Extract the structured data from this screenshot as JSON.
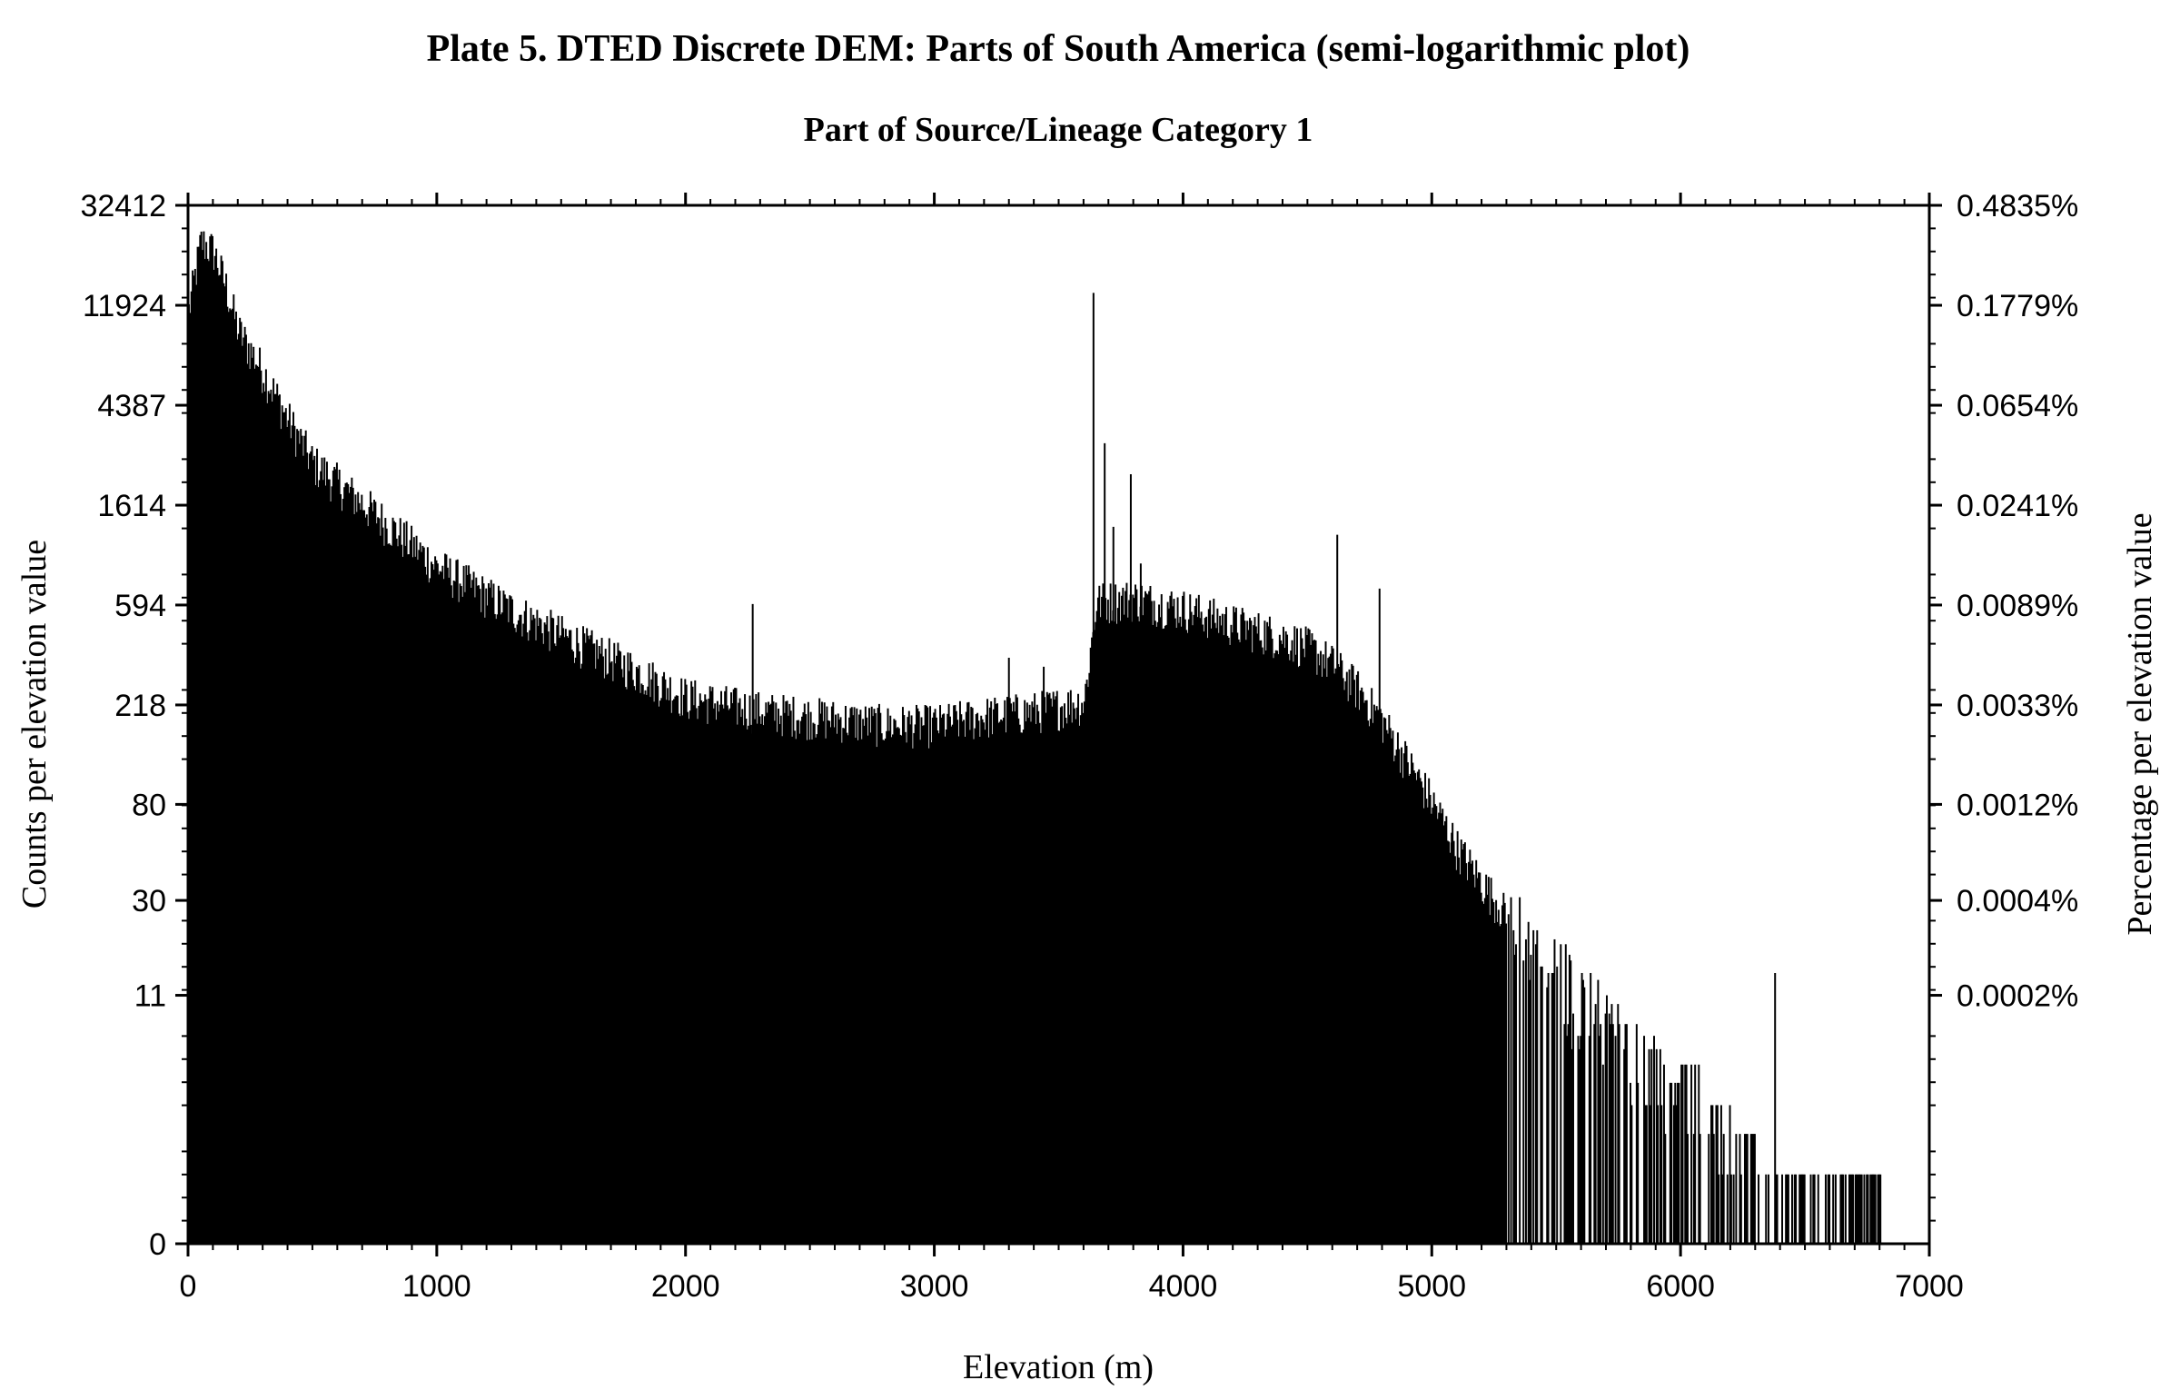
{
  "chart_data": {
    "type": "bar",
    "title": "Plate 5. DTED Discrete DEM: Parts of South America (semi-logarithmic plot)",
    "subtitle": "Part of Source/Lineage Category 1",
    "xlabel": "Elevation (m)",
    "ylabel": "Counts per elevation value",
    "y2label": "Percentage per elevation value",
    "y_scale": "log(count+1)",
    "xlim": [
      0,
      7000
    ],
    "ylim": [
      0,
      32412
    ],
    "grid": false,
    "legend": "none",
    "bar_color": "#000000",
    "x_ticks": [
      "0",
      "1000",
      "2000",
      "3000",
      "4000",
      "5000",
      "6000",
      "7000"
    ],
    "y_ticks": [
      "0",
      "11",
      "30",
      "80",
      "218",
      "594",
      "1614",
      "4387",
      "11924",
      "32412"
    ],
    "y2_ticks": [
      "0.0002%",
      "0.0004%",
      "0.0012%",
      "0.0033%",
      "0.0089%",
      "0.0241%",
      "0.0654%",
      "0.1779%",
      "0.4835%"
    ],
    "series": [
      {
        "x": [
          0,
          50,
          100,
          150,
          200,
          300,
          400,
          500,
          700,
          1000,
          1300,
          1600,
          1800,
          2000,
          2300,
          2500,
          2800,
          3000,
          3200,
          3400,
          3600,
          3650,
          3800,
          4000,
          4200,
          4400,
          4500,
          4600,
          4700,
          4800,
          4900,
          5000,
          5100,
          5200,
          5300,
          5400,
          5500,
          5600,
          5700,
          5800,
          5900,
          6000,
          6100,
          6200,
          6400,
          6600,
          6800
        ],
        "y": [
          11000,
          22000,
          20000,
          14000,
          9000,
          6000,
          3700,
          2400,
          1600,
          850,
          550,
          380,
          300,
          230,
          200,
          190,
          175,
          175,
          190,
          200,
          220,
          600,
          620,
          560,
          480,
          420,
          380,
          320,
          250,
          180,
          120,
          80,
          50,
          35,
          25,
          18,
          14,
          11,
          8,
          6,
          5,
          4,
          3,
          2,
          1,
          1,
          1
        ]
      }
    ],
    "spikes": [
      {
        "x": 2270,
        "y": 600
      },
      {
        "x": 3300,
        "y": 350
      },
      {
        "x": 3440,
        "y": 320
      },
      {
        "x": 3640,
        "y": 13500
      },
      {
        "x": 3685,
        "y": 3000
      },
      {
        "x": 3720,
        "y": 1300
      },
      {
        "x": 3790,
        "y": 2200
      },
      {
        "x": 3830,
        "y": 900
      },
      {
        "x": 4620,
        "y": 1200
      },
      {
        "x": 4790,
        "y": 700
      },
      {
        "x": 5080,
        "y": 60
      },
      {
        "x": 6380,
        "y": 14
      }
    ]
  }
}
